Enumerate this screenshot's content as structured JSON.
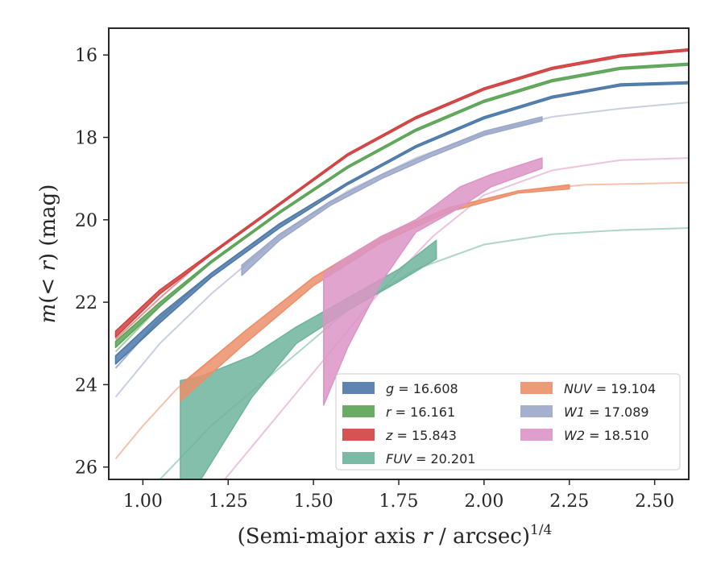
{
  "chart_data": {
    "type": "line",
    "xlabel": "(Semi-major axis r / arcsec)^{1/4}",
    "xlabel_parts": {
      "main": "(Semi-major axis ",
      "var": "r",
      "rest": " / arcsec)",
      "sup": "1/4"
    },
    "ylabel": "m(< r) (mag)",
    "ylabel_parts": {
      "m": "m",
      "open": "(",
      "lt": "< ",
      "r": "r",
      "close": ") (mag)"
    },
    "xlim": [
      0.9,
      2.6
    ],
    "ylim": [
      26.3,
      15.35
    ],
    "y_inverted": true,
    "xticks": [
      "1.00",
      "1.25",
      "1.50",
      "1.75",
      "2.00",
      "2.25",
      "2.50"
    ],
    "xtick_values": [
      1.0,
      1.25,
      1.5,
      1.75,
      2.0,
      2.25,
      2.5
    ],
    "yticks": [
      "16",
      "18",
      "20",
      "22",
      "24",
      "26"
    ],
    "ytick_values": [
      16,
      18,
      20,
      22,
      24,
      26
    ],
    "grid": false,
    "legend_position": "lower-right",
    "series": [
      {
        "name": "g = 16.608",
        "label_var": "g",
        "label_val": "= 16.608",
        "color": "#4c78a8",
        "faint": [
          [
            0.92,
            23.6
          ],
          [
            1.05,
            22.4
          ],
          [
            1.2,
            21.3
          ],
          [
            1.4,
            20.1
          ],
          [
            1.6,
            19.1
          ],
          [
            1.8,
            18.2
          ],
          [
            2.0,
            17.5
          ],
          [
            2.2,
            17.0
          ],
          [
            2.4,
            16.75
          ],
          [
            2.6,
            16.65
          ]
        ],
        "band": [
          [
            0.92,
            23.3,
            23.5
          ],
          [
            1.05,
            22.3,
            22.5
          ],
          [
            1.2,
            21.3,
            21.4
          ],
          [
            1.4,
            20.1,
            20.2
          ],
          [
            1.6,
            19.1,
            19.15
          ],
          [
            1.8,
            18.2,
            18.25
          ],
          [
            2.0,
            17.5,
            17.55
          ],
          [
            2.2,
            17.0,
            17.05
          ],
          [
            2.4,
            16.7,
            16.75
          ],
          [
            2.6,
            16.65,
            16.7
          ]
        ]
      },
      {
        "name": "r = 16.161",
        "label_var": "r",
        "label_val": "= 16.161",
        "color": "#5aa355",
        "faint": [
          [
            0.92,
            23.2
          ],
          [
            1.05,
            22.1
          ],
          [
            1.2,
            21.0
          ],
          [
            1.4,
            19.8
          ],
          [
            1.6,
            18.7
          ],
          [
            1.8,
            17.8
          ],
          [
            2.0,
            17.1
          ],
          [
            2.2,
            16.6
          ],
          [
            2.4,
            16.3
          ],
          [
            2.6,
            16.2
          ]
        ],
        "band": [
          [
            0.92,
            22.95,
            23.1
          ],
          [
            1.05,
            22.0,
            22.1
          ],
          [
            1.2,
            21.0,
            21.05
          ],
          [
            1.4,
            19.8,
            19.85
          ],
          [
            1.6,
            18.7,
            18.75
          ],
          [
            1.8,
            17.8,
            17.85
          ],
          [
            2.0,
            17.1,
            17.15
          ],
          [
            2.2,
            16.6,
            16.65
          ],
          [
            2.4,
            16.3,
            16.35
          ],
          [
            2.6,
            16.2,
            16.25
          ]
        ]
      },
      {
        "name": "z = 15.843",
        "label_var": "z",
        "label_val": "= 15.843",
        "color": "#d04040",
        "faint": [
          [
            0.92,
            22.9
          ],
          [
            1.05,
            21.9
          ],
          [
            1.2,
            20.8
          ],
          [
            1.4,
            19.6
          ],
          [
            1.6,
            18.4
          ],
          [
            1.8,
            17.5
          ],
          [
            2.0,
            16.8
          ],
          [
            2.2,
            16.3
          ],
          [
            2.4,
            16.0
          ],
          [
            2.6,
            15.9
          ]
        ],
        "band": [
          [
            0.92,
            22.7,
            22.85
          ],
          [
            1.05,
            21.7,
            21.8
          ],
          [
            1.2,
            20.8,
            20.85
          ],
          [
            1.4,
            19.6,
            19.65
          ],
          [
            1.6,
            18.4,
            18.45
          ],
          [
            1.8,
            17.5,
            17.55
          ],
          [
            2.0,
            16.8,
            16.85
          ],
          [
            2.2,
            16.3,
            16.35
          ],
          [
            2.4,
            16.0,
            16.05
          ],
          [
            2.6,
            15.85,
            15.9
          ]
        ]
      },
      {
        "name": "FUV = 20.201",
        "label_var": "FUV",
        "label_val": "= 20.201",
        "color": "#6db49b",
        "faint": [
          [
            1.05,
            26.3
          ],
          [
            1.2,
            25.0
          ],
          [
            1.4,
            23.6
          ],
          [
            1.6,
            22.2
          ],
          [
            1.8,
            21.2
          ],
          [
            2.0,
            20.6
          ],
          [
            2.2,
            20.35
          ],
          [
            2.4,
            20.25
          ],
          [
            2.6,
            20.2
          ]
        ],
        "band": [
          [
            1.11,
            23.9,
            26.3
          ],
          [
            1.17,
            23.8,
            26.3
          ],
          [
            1.32,
            23.3,
            24.3
          ],
          [
            1.45,
            22.6,
            23.0
          ],
          [
            1.6,
            21.9,
            22.2
          ],
          [
            1.75,
            21.2,
            21.5
          ],
          [
            1.86,
            20.5,
            20.95
          ]
        ]
      },
      {
        "name": "NUV = 19.104",
        "label_var": "NUV",
        "label_val": "= 19.104",
        "color": "#eb8f6a",
        "faint": [
          [
            0.92,
            25.8
          ],
          [
            1.0,
            25.0
          ],
          [
            1.1,
            24.1
          ],
          [
            1.3,
            22.7
          ],
          [
            1.5,
            21.4
          ],
          [
            1.7,
            20.4
          ],
          [
            1.9,
            19.7
          ],
          [
            2.1,
            19.3
          ],
          [
            2.3,
            19.15
          ],
          [
            2.6,
            19.1
          ]
        ],
        "band": [
          [
            1.11,
            24.0,
            24.4
          ],
          [
            1.3,
            22.7,
            23.0
          ],
          [
            1.5,
            21.4,
            21.6
          ],
          [
            1.7,
            20.4,
            20.55
          ],
          [
            1.9,
            19.7,
            19.8
          ],
          [
            2.1,
            19.3,
            19.35
          ],
          [
            2.25,
            19.15,
            19.25
          ]
        ]
      },
      {
        "name": "W1 = 17.089",
        "label_var": "W1",
        "label_val": "= 17.089",
        "color": "#9aa7c9",
        "faint": [
          [
            0.92,
            24.3
          ],
          [
            1.05,
            23.0
          ],
          [
            1.2,
            21.8
          ],
          [
            1.4,
            20.4
          ],
          [
            1.6,
            19.3
          ],
          [
            1.8,
            18.5
          ],
          [
            2.0,
            17.9
          ],
          [
            2.2,
            17.5
          ],
          [
            2.4,
            17.3
          ],
          [
            2.6,
            17.15
          ]
        ],
        "band": [
          [
            1.29,
            21.1,
            21.35
          ],
          [
            1.4,
            20.35,
            20.5
          ],
          [
            1.55,
            19.55,
            19.65
          ],
          [
            1.7,
            18.9,
            19.0
          ],
          [
            1.85,
            18.35,
            18.45
          ],
          [
            2.0,
            17.85,
            17.95
          ],
          [
            2.17,
            17.5,
            17.6
          ]
        ]
      },
      {
        "name": "W2 = 18.510",
        "label_var": "W2",
        "label_val": "= 18.510",
        "color": "#dc94c6",
        "faint": [
          [
            1.24,
            26.3
          ],
          [
            1.4,
            24.7
          ],
          [
            1.55,
            23.2
          ],
          [
            1.7,
            21.7
          ],
          [
            1.85,
            20.4
          ],
          [
            2.0,
            19.4
          ],
          [
            2.2,
            18.8
          ],
          [
            2.4,
            18.55
          ],
          [
            2.6,
            18.5
          ]
        ],
        "band": [
          [
            1.53,
            21.3,
            24.5
          ],
          [
            1.6,
            20.9,
            23.1
          ],
          [
            1.7,
            20.4,
            21.5
          ],
          [
            1.8,
            20.0,
            20.3
          ],
          [
            1.93,
            19.2,
            19.7
          ],
          [
            2.02,
            18.9,
            19.2
          ],
          [
            2.17,
            18.5,
            18.75
          ]
        ]
      }
    ]
  }
}
